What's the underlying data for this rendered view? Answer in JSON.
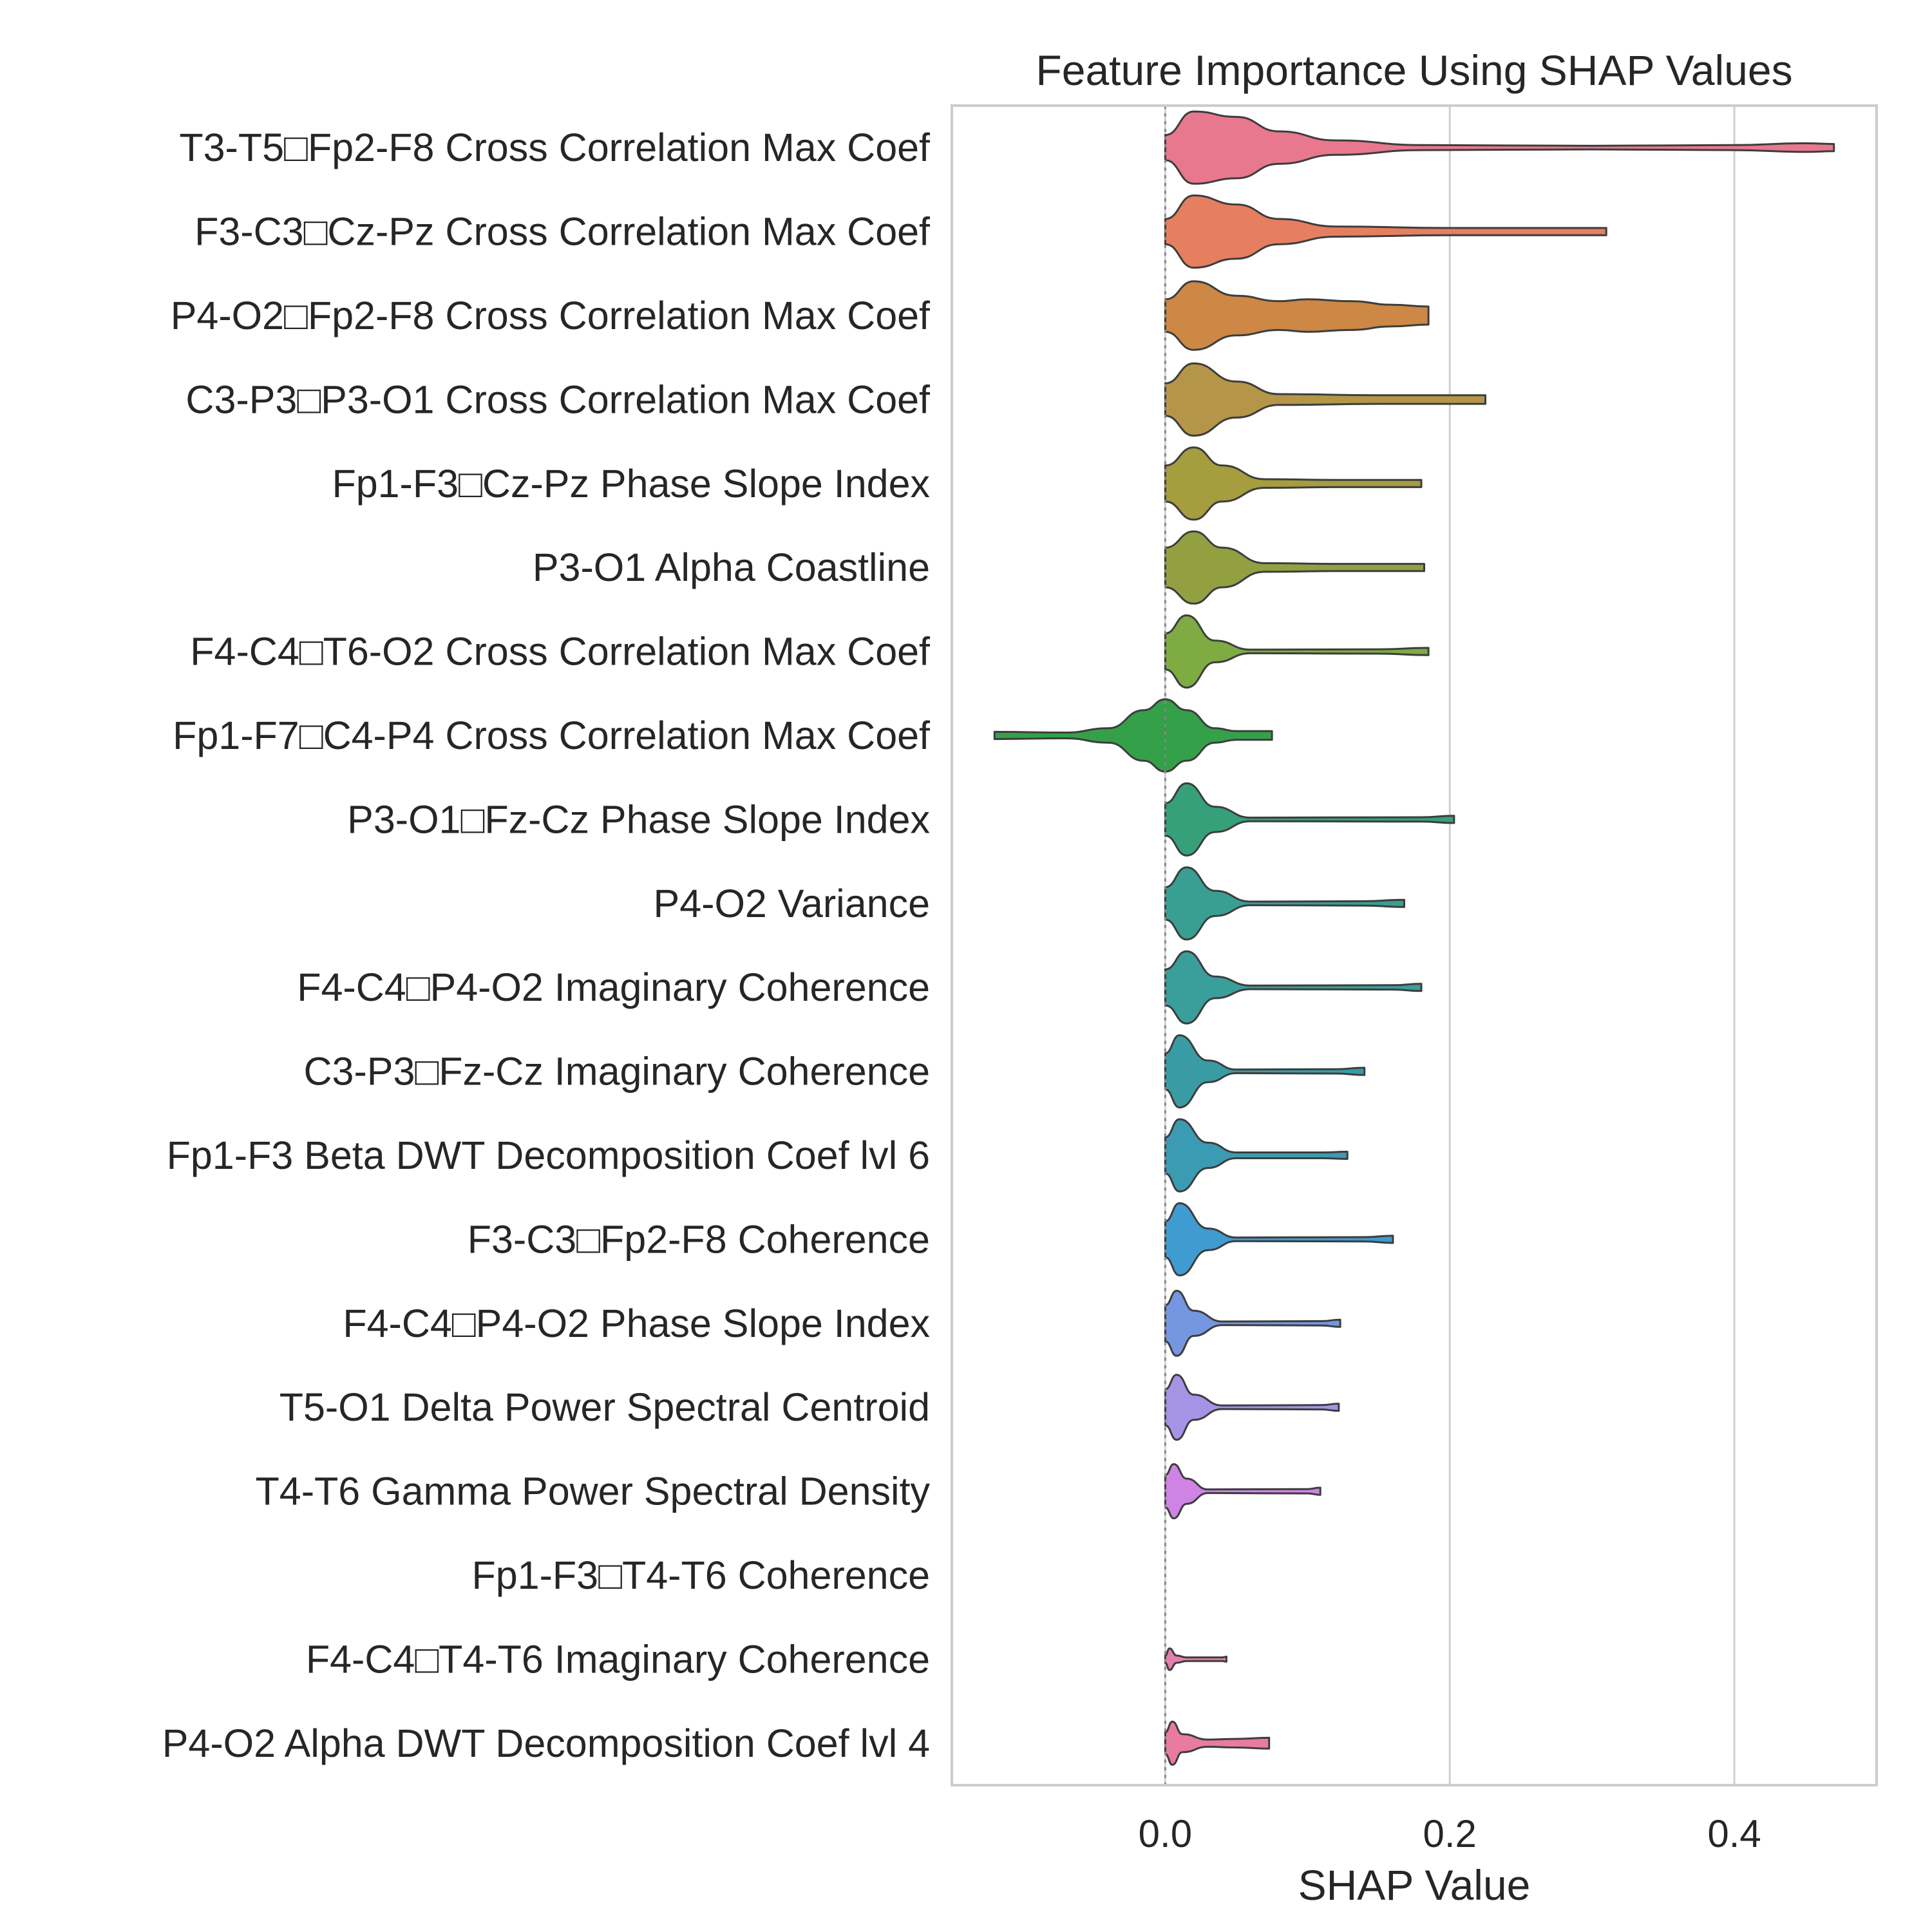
{
  "chart_data": {
    "type": "violin",
    "title": "Feature Importance Using SHAP Values",
    "xlabel": "SHAP Value",
    "ylabel": "",
    "xlim": [
      -0.15,
      0.5
    ],
    "xticks": [
      0.0,
      0.2,
      0.4
    ],
    "xtick_labels": [
      "0.0",
      "0.2",
      "0.4"
    ],
    "grid": true,
    "reference_line_x": 0.0,
    "categories": [
      "T3-T5□Fp2-F8 Cross Correlation Max Coef",
      "F3-C3□Cz-Pz Cross Correlation Max Coef",
      "P4-O2□Fp2-F8 Cross Correlation Max Coef",
      "C3-P3□P3-O1 Cross Correlation Max Coef",
      "Fp1-F3□Cz-Pz Phase Slope Index",
      "P3-O1 Alpha Coastline",
      "F4-C4□T6-O2 Cross Correlation Max Coef",
      "Fp1-F7□C4-P4 Cross Correlation Max Coef",
      "P3-O1□Fz-Cz Phase Slope Index",
      "P4-O2 Variance",
      "F4-C4□P4-O2 Imaginary Coherence",
      "C3-P3□Fz-Cz Imaginary Coherence",
      "Fp1-F3 Beta DWT Decomposition Coef lvl 6",
      "F3-C3□Fp2-F8 Coherence",
      "F4-C4□P4-O2 Phase Slope Index",
      "T5-O1 Delta Power Spectral Centroid",
      "T4-T6 Gamma Power Spectral Density",
      "Fp1-F3□T4-T6 Coherence",
      "F4-C4□T4-T6 Imaginary Coherence",
      "P4-O2 Alpha DWT Decomposition Coef lvl 4"
    ],
    "series": [
      {
        "min": 0.0,
        "max": 0.47,
        "colors": "#e8788e",
        "profile": [
          [
            0,
            0.35
          ],
          [
            0.02,
            1
          ],
          [
            0.05,
            0.85
          ],
          [
            0.08,
            0.45
          ],
          [
            0.12,
            0.2
          ],
          [
            0.18,
            0.07
          ],
          [
            0.3,
            0.05
          ],
          [
            0.4,
            0.07
          ],
          [
            0.45,
            0.12
          ],
          [
            0.47,
            0.1
          ]
        ]
      },
      {
        "min": 0.0,
        "max": 0.31,
        "colors": "#e57f60",
        "profile": [
          [
            0,
            0.35
          ],
          [
            0.02,
            1
          ],
          [
            0.05,
            0.75
          ],
          [
            0.08,
            0.35
          ],
          [
            0.12,
            0.14
          ],
          [
            0.2,
            0.1
          ],
          [
            0.28,
            0.1
          ],
          [
            0.31,
            0.1
          ]
        ]
      },
      {
        "min": 0.0,
        "max": 0.185,
        "colors": "#cc8844",
        "profile": [
          [
            0,
            0.45
          ],
          [
            0.02,
            0.95
          ],
          [
            0.05,
            0.55
          ],
          [
            0.08,
            0.4
          ],
          [
            0.1,
            0.45
          ],
          [
            0.13,
            0.4
          ],
          [
            0.16,
            0.3
          ],
          [
            0.185,
            0.25
          ]
        ]
      },
      {
        "min": 0.0,
        "max": 0.225,
        "colors": "#b59548",
        "profile": [
          [
            0,
            0.45
          ],
          [
            0.02,
            1
          ],
          [
            0.05,
            0.5
          ],
          [
            0.08,
            0.15
          ],
          [
            0.15,
            0.12
          ],
          [
            0.2,
            0.12
          ],
          [
            0.225,
            0.12
          ]
        ]
      },
      {
        "min": 0.0,
        "max": 0.18,
        "colors": "#a59d3e",
        "profile": [
          [
            0,
            0.5
          ],
          [
            0.02,
            1
          ],
          [
            0.04,
            0.5
          ],
          [
            0.07,
            0.12
          ],
          [
            0.12,
            0.1
          ],
          [
            0.18,
            0.1
          ]
        ]
      },
      {
        "min": 0.0,
        "max": 0.182,
        "colors": "#93a042",
        "profile": [
          [
            0,
            0.55
          ],
          [
            0.02,
            1
          ],
          [
            0.04,
            0.55
          ],
          [
            0.07,
            0.12
          ],
          [
            0.12,
            0.1
          ],
          [
            0.182,
            0.1
          ]
        ]
      },
      {
        "min": 0.0,
        "max": 0.185,
        "colors": "#7eab42",
        "profile": [
          [
            0,
            0.5
          ],
          [
            0.015,
            1
          ],
          [
            0.035,
            0.3
          ],
          [
            0.06,
            0.05
          ],
          [
            0.15,
            0.06
          ],
          [
            0.185,
            0.1
          ]
        ]
      },
      {
        "min": -0.12,
        "max": 0.075,
        "colors": "#34a04a",
        "profile": [
          [
            -0.12,
            0.1
          ],
          [
            -0.07,
            0.08
          ],
          [
            -0.04,
            0.2
          ],
          [
            -0.015,
            0.7
          ],
          [
            0,
            1
          ],
          [
            0.015,
            0.7
          ],
          [
            0.035,
            0.2
          ],
          [
            0.05,
            0.12
          ],
          [
            0.075,
            0.12
          ]
        ]
      },
      {
        "min": 0.0,
        "max": 0.203,
        "colors": "#36a07a",
        "profile": [
          [
            0,
            0.45
          ],
          [
            0.015,
            1
          ],
          [
            0.035,
            0.35
          ],
          [
            0.06,
            0.05
          ],
          [
            0.18,
            0.06
          ],
          [
            0.203,
            0.1
          ]
        ]
      },
      {
        "min": 0.0,
        "max": 0.168,
        "colors": "#389f92",
        "profile": [
          [
            0,
            0.45
          ],
          [
            0.015,
            1
          ],
          [
            0.035,
            0.35
          ],
          [
            0.06,
            0.05
          ],
          [
            0.14,
            0.06
          ],
          [
            0.168,
            0.1
          ]
        ]
      },
      {
        "min": 0.0,
        "max": 0.18,
        "colors": "#3a9e9a",
        "profile": [
          [
            0,
            0.5
          ],
          [
            0.015,
            1
          ],
          [
            0.035,
            0.3
          ],
          [
            0.06,
            0.05
          ],
          [
            0.16,
            0.06
          ],
          [
            0.18,
            0.1
          ]
        ]
      },
      {
        "min": 0.0,
        "max": 0.14,
        "colors": "#399ca5",
        "profile": [
          [
            0,
            0.5
          ],
          [
            0.01,
            1
          ],
          [
            0.03,
            0.3
          ],
          [
            0.05,
            0.05
          ],
          [
            0.12,
            0.06
          ],
          [
            0.14,
            0.1
          ]
        ]
      },
      {
        "min": 0.0,
        "max": 0.128,
        "colors": "#3b9bb3",
        "profile": [
          [
            0,
            0.5
          ],
          [
            0.01,
            1
          ],
          [
            0.03,
            0.35
          ],
          [
            0.05,
            0.08
          ],
          [
            0.11,
            0.08
          ],
          [
            0.128,
            0.1
          ]
        ]
      },
      {
        "min": 0.0,
        "max": 0.16,
        "colors": "#3f9bd0",
        "profile": [
          [
            0,
            0.5
          ],
          [
            0.01,
            1
          ],
          [
            0.03,
            0.3
          ],
          [
            0.05,
            0.05
          ],
          [
            0.14,
            0.06
          ],
          [
            0.16,
            0.1
          ]
        ]
      },
      {
        "min": 0.0,
        "max": 0.123,
        "colors": "#7596e0",
        "profile": [
          [
            0,
            0.5
          ],
          [
            0.008,
            0.9
          ],
          [
            0.02,
            0.35
          ],
          [
            0.04,
            0.05
          ],
          [
            0.11,
            0.06
          ],
          [
            0.123,
            0.1
          ]
        ]
      },
      {
        "min": 0.0,
        "max": 0.122,
        "colors": "#a593e6",
        "profile": [
          [
            0,
            0.5
          ],
          [
            0.008,
            0.9
          ],
          [
            0.02,
            0.35
          ],
          [
            0.04,
            0.05
          ],
          [
            0.11,
            0.06
          ],
          [
            0.122,
            0.1
          ]
        ]
      },
      {
        "min": 0.0,
        "max": 0.109,
        "colors": "#cf83e2",
        "profile": [
          [
            0,
            0.45
          ],
          [
            0.006,
            0.75
          ],
          [
            0.015,
            0.35
          ],
          [
            0.03,
            0.05
          ],
          [
            0.1,
            0.06
          ],
          [
            0.109,
            0.1
          ]
        ]
      },
      {
        "min": 0.0,
        "max": 0.0,
        "colors": "#e47fca",
        "profile": []
      },
      {
        "min": 0.0,
        "max": 0.043,
        "colors": "#e57fb2",
        "profile": [
          [
            0,
            0.1
          ],
          [
            0.003,
            0.3
          ],
          [
            0.008,
            0.1
          ],
          [
            0.015,
            0.05
          ],
          [
            0.04,
            0.05
          ],
          [
            0.043,
            0.07
          ]
        ]
      },
      {
        "min": 0.0,
        "max": 0.073,
        "colors": "#e97ba0",
        "profile": [
          [
            0,
            0.3
          ],
          [
            0.005,
            0.6
          ],
          [
            0.012,
            0.25
          ],
          [
            0.03,
            0.1
          ],
          [
            0.05,
            0.12
          ],
          [
            0.073,
            0.15
          ]
        ]
      }
    ],
    "colors": {
      "grid": "#d0d0d0",
      "spine": "#cccccc",
      "edge": "#3d3d3d",
      "refline": "#888888",
      "text": "#262626"
    }
  }
}
